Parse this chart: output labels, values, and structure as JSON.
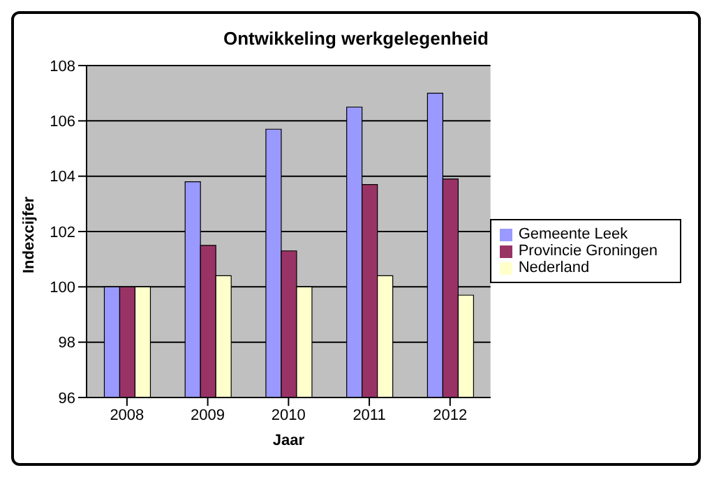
{
  "chart_data": {
    "type": "bar",
    "title": "Ontwikkeling werkgelegenheid",
    "xlabel": "Jaar",
    "ylabel": "Indexcijfer",
    "categories": [
      "2008",
      "2009",
      "2010",
      "2011",
      "2012"
    ],
    "series": [
      {
        "name": "Gemeente Leek",
        "color": "#9999ff",
        "values": [
          100,
          103.8,
          105.7,
          106.5,
          107.0
        ]
      },
      {
        "name": "Provincie Groningen",
        "color": "#993366",
        "values": [
          100,
          101.5,
          101.3,
          103.7,
          103.9
        ]
      },
      {
        "name": "Nederland",
        "color": "#ffffcc",
        "values": [
          100,
          100.4,
          100.0,
          100.4,
          99.7
        ]
      }
    ],
    "ylim": [
      96,
      108
    ],
    "yticks": [
      96,
      98,
      100,
      102,
      104,
      106,
      108
    ],
    "grid": "y",
    "legend": "right"
  }
}
